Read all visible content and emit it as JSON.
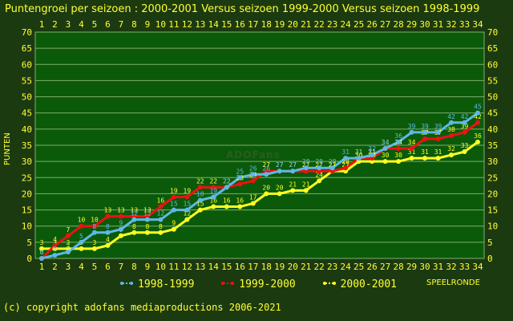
{
  "title": "Puntengroei per seizoen : 2000-2001 Versus seizoen 1999-2000 Versus seizoen 1998-1999",
  "footer": "(c) copyright adofans mediaproductions 2006-2021",
  "watermark": "ADOFans",
  "colors": {
    "background": "#1c3a10",
    "plot": "#0a5a0a",
    "grid": "#7fae6e",
    "text": "#ffff33"
  },
  "chart_data": {
    "type": "line",
    "title": "Puntengroei per seizoen : 2000-2001 Versus seizoen 1999-2000 Versus seizoen 1998-1999",
    "xlabel": "SPEELRONDE",
    "ylabel": "PUNTEN",
    "ylim": [
      0,
      70
    ],
    "yticks": [
      0,
      5,
      10,
      15,
      20,
      25,
      30,
      35,
      40,
      45,
      50,
      55,
      60,
      65,
      70
    ],
    "x": [
      1,
      2,
      3,
      4,
      5,
      6,
      7,
      8,
      9,
      10,
      11,
      12,
      13,
      14,
      15,
      16,
      17,
      18,
      19,
      20,
      21,
      22,
      23,
      24,
      25,
      26,
      27,
      28,
      29,
      30,
      31,
      32,
      33,
      34
    ],
    "grid": true,
    "legend_position": "bottom",
    "series": [
      {
        "name": "1998-1999",
        "color": "#5fb8e8",
        "values": [
          0,
          1,
          2,
          5,
          8,
          8,
          9,
          12,
          12,
          12,
          15,
          15,
          18,
          19,
          22,
          25,
          26,
          26,
          27,
          27,
          28,
          28,
          28,
          31,
          31,
          32,
          34,
          36,
          39,
          39,
          39,
          42,
          42,
          45
        ]
      },
      {
        "name": "1999-2000",
        "color": "#ee1111",
        "values": [
          0,
          4,
          7,
          10,
          10,
          13,
          13,
          13,
          13,
          16,
          19,
          19,
          22,
          22,
          22,
          23,
          24,
          27,
          27,
          27,
          27,
          27,
          27,
          28,
          31,
          31,
          34,
          34,
          34,
          37,
          37,
          38,
          39,
          42
        ]
      },
      {
        "name": "2000-2001",
        "color": "#ffff22",
        "values": [
          3,
          3,
          3,
          3,
          3,
          4,
          7,
          8,
          8,
          8,
          9,
          12,
          15,
          16,
          16,
          16,
          17,
          20,
          20,
          21,
          21,
          24,
          27,
          27,
          30,
          30,
          30,
          30,
          31,
          31,
          31,
          32,
          33,
          36
        ]
      }
    ]
  }
}
